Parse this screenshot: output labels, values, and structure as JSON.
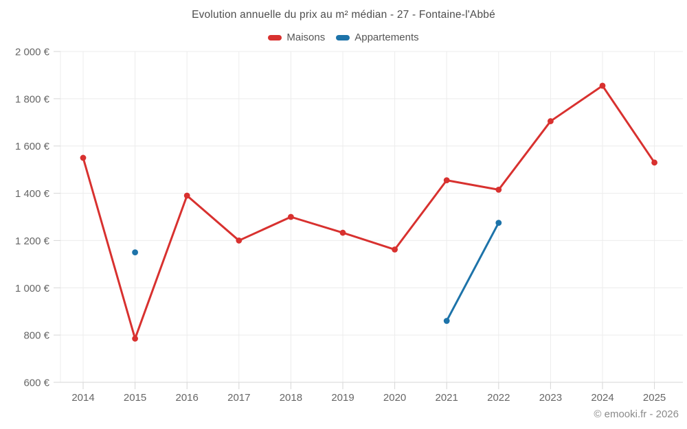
{
  "header": {
    "title": "Evolution annuelle du prix au m² médian - 27 - Fontaine-l'Abbé"
  },
  "legend": {
    "items": [
      {
        "label": "Maisons",
        "color": "#d8312f"
      },
      {
        "label": "Appartements",
        "color": "#1d73a9"
      }
    ]
  },
  "footer": {
    "copyright": "© emooki.fr - 2026"
  },
  "chart_data": {
    "type": "line",
    "title": "Evolution annuelle du prix au m² médian - 27 - Fontaine-l'Abbé",
    "x": [
      2014,
      2015,
      2016,
      2017,
      2018,
      2019,
      2020,
      2021,
      2022,
      2023,
      2024,
      2025
    ],
    "series": [
      {
        "name": "Maisons",
        "color": "#d8312f",
        "values": [
          1550,
          785,
          1390,
          1200,
          1300,
          1233,
          1162,
          1455,
          1415,
          1705,
          1855,
          1530
        ]
      },
      {
        "name": "Appartements",
        "color": "#1d73a9",
        "values": [
          null,
          1150,
          null,
          null,
          null,
          null,
          null,
          860,
          1275,
          null,
          null,
          null
        ]
      }
    ],
    "xlabel": "",
    "ylabel": "",
    "ylim": [
      600,
      2000
    ],
    "ytick_step": 200,
    "y_unit": "€",
    "grid": true,
    "legend_position": "top"
  },
  "style": {
    "grid_color": "#ececec",
    "axis_color": "#d6d6d6",
    "tick_label_color": "#666666",
    "title_color": "#4d4d4d",
    "legend_text_color": "#555555",
    "copyright_color": "#8a8a8a",
    "background": "#ffffff"
  }
}
